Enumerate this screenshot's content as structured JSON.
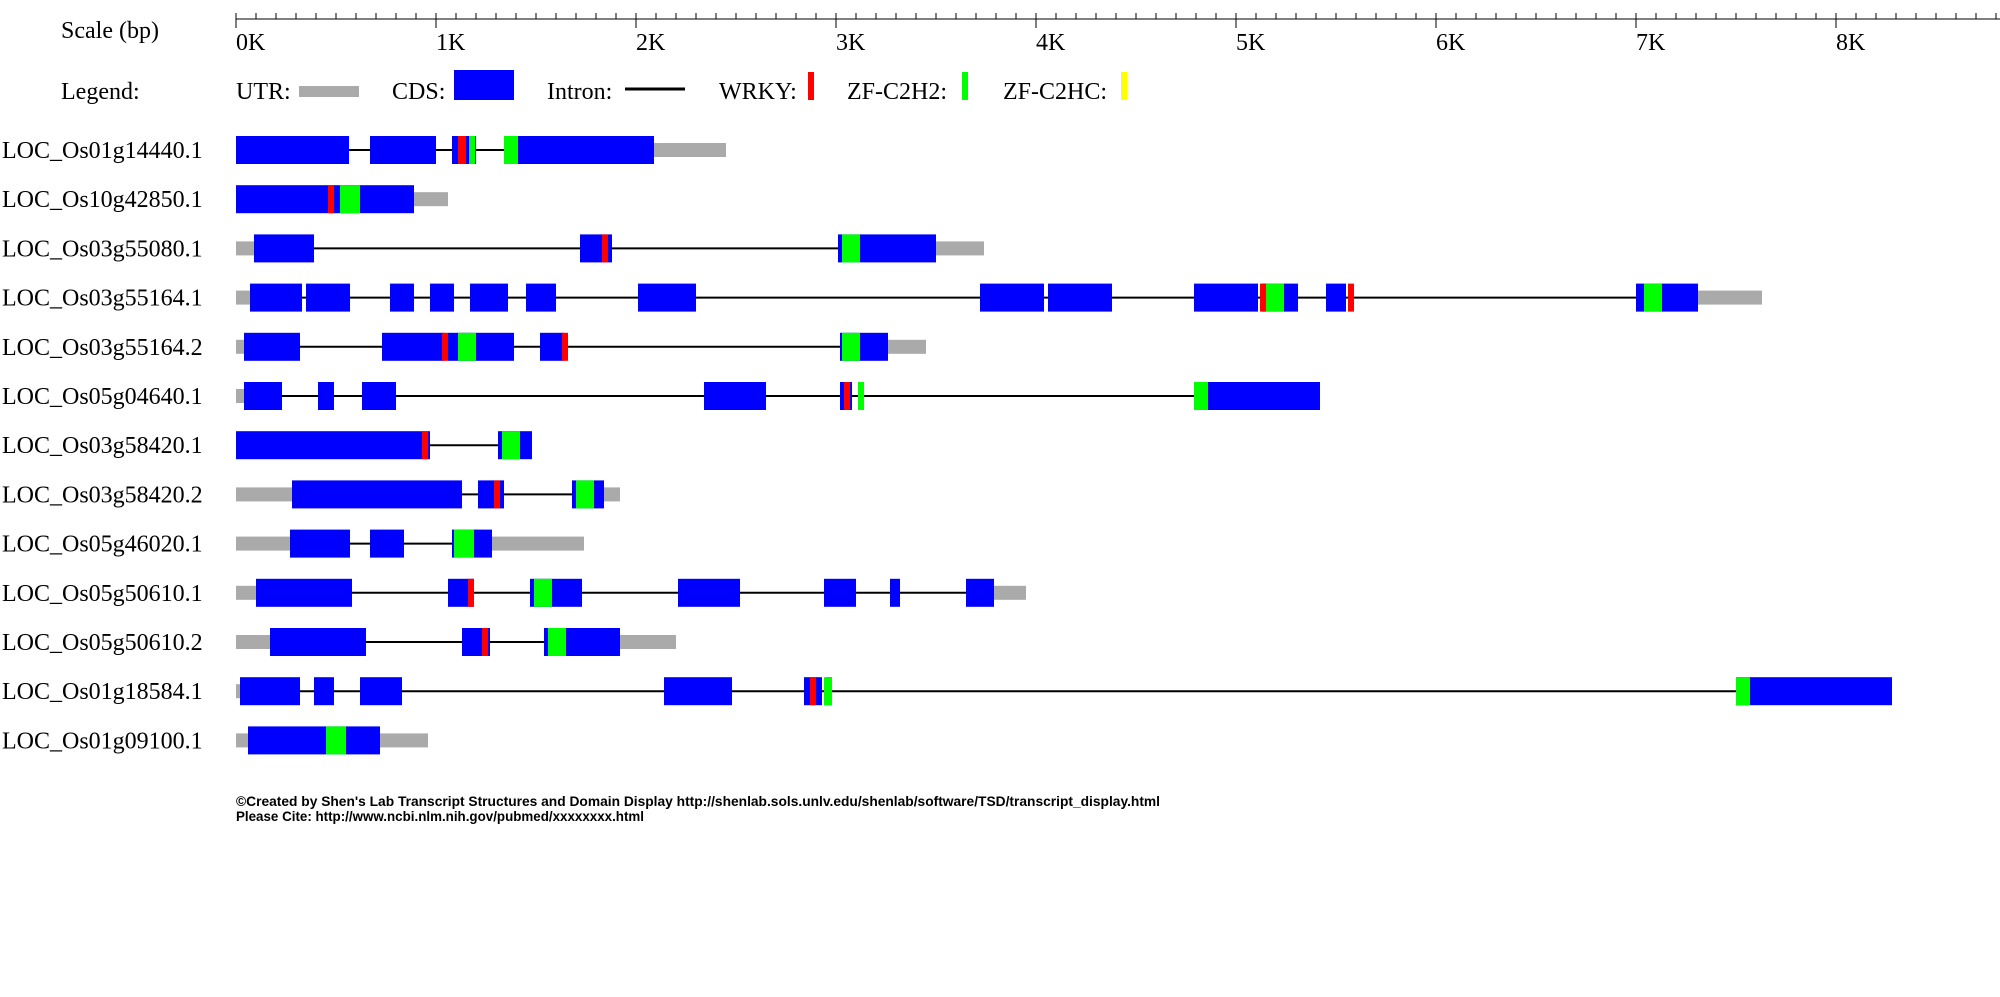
{
  "scale": {
    "label": "Scale (bp)",
    "max_bp": 9000,
    "minor_step_bp": 100,
    "major_step_bp": 1000,
    "tick_labels": [
      "0K",
      "1K",
      "2K",
      "3K",
      "4K",
      "5K",
      "6K",
      "7K",
      "8K"
    ]
  },
  "legend": {
    "label": "Legend:",
    "items": [
      {
        "key": "utr",
        "label": "UTR:",
        "shape": "utr-bar",
        "color": "#aaaaaa"
      },
      {
        "key": "cds",
        "label": "CDS:",
        "shape": "cds-box",
        "color": "#0000ff"
      },
      {
        "key": "intron",
        "label": "Intron:",
        "shape": "line",
        "color": "#000000"
      },
      {
        "key": "wrky",
        "label": "WRKY:",
        "shape": "domain",
        "color": "#ff0000"
      },
      {
        "key": "zf_c2h2",
        "label": "ZF-C2H2:",
        "shape": "domain",
        "color": "#00ff00"
      },
      {
        "key": "zf_c2hc",
        "label": "ZF-C2HC:",
        "shape": "domain",
        "color": "#ffff00"
      }
    ]
  },
  "colors": {
    "utr": "#aaaaaa",
    "cds": "#0000ff",
    "intron": "#000000",
    "WRKY": "#ff0000",
    "ZF-C2H2": "#00ff00",
    "ZF-C2HC": "#ffff00"
  },
  "transcripts": [
    {
      "id": "LOC_Os01g14440.1",
      "start": 0,
      "end": 2450,
      "utr": [
        [
          2090,
          2450
        ]
      ],
      "cds": [
        [
          0,
          565
        ],
        [
          670,
          1000
        ],
        [
          1080,
          1200
        ],
        [
          1340,
          2090
        ]
      ],
      "domains": [
        {
          "type": "WRKY",
          "start": 1110,
          "end": 1150
        },
        {
          "type": "ZF-C2H2",
          "start": 1165,
          "end": 1195
        },
        {
          "type": "ZF-C2H2",
          "start": 1340,
          "end": 1410
        }
      ]
    },
    {
      "id": "LOC_Os10g42850.1",
      "start": 0,
      "end": 1060,
      "utr": [
        [
          890,
          1060
        ]
      ],
      "cds": [
        [
          0,
          890
        ]
      ],
      "domains": [
        {
          "type": "WRKY",
          "start": 460,
          "end": 490
        },
        {
          "type": "ZF-C2H2",
          "start": 520,
          "end": 620
        }
      ]
    },
    {
      "id": "LOC_Os03g55080.1",
      "start": 0,
      "end": 3740,
      "utr": [
        [
          0,
          90
        ],
        [
          3500,
          3740
        ]
      ],
      "cds": [
        [
          90,
          390
        ],
        [
          1720,
          1880
        ],
        [
          3010,
          3500
        ]
      ],
      "domains": [
        {
          "type": "WRKY",
          "start": 1830,
          "end": 1860
        },
        {
          "type": "ZF-C2H2",
          "start": 3030,
          "end": 3120
        }
      ]
    },
    {
      "id": "LOC_Os03g55164.1",
      "start": 0,
      "end": 7630,
      "utr": [
        [
          0,
          70
        ],
        [
          7310,
          7630
        ]
      ],
      "cds": [
        [
          70,
          330
        ],
        [
          350,
          570
        ],
        [
          770,
          890
        ],
        [
          970,
          1090
        ],
        [
          1170,
          1360
        ],
        [
          1450,
          1600
        ],
        [
          2010,
          2300
        ],
        [
          3720,
          4040
        ],
        [
          4060,
          4380
        ],
        [
          4790,
          5110
        ],
        [
          5130,
          5310
        ],
        [
          5450,
          5550
        ],
        [
          7000,
          7310
        ]
      ],
      "domains": [
        {
          "type": "WRKY",
          "start": 5120,
          "end": 5150
        },
        {
          "type": "ZF-C2H2",
          "start": 5150,
          "end": 5240
        },
        {
          "type": "WRKY",
          "start": 5560,
          "end": 5590
        },
        {
          "type": "ZF-C2H2",
          "start": 7040,
          "end": 7130
        }
      ]
    },
    {
      "id": "LOC_Os03g55164.2",
      "start": 0,
      "end": 3450,
      "utr": [
        [
          0,
          40
        ],
        [
          3260,
          3450
        ]
      ],
      "cds": [
        [
          40,
          320
        ],
        [
          730,
          1040
        ],
        [
          1060,
          1390
        ],
        [
          1520,
          1640
        ],
        [
          3020,
          3260
        ]
      ],
      "domains": [
        {
          "type": "WRKY",
          "start": 1030,
          "end": 1060
        },
        {
          "type": "ZF-C2H2",
          "start": 1110,
          "end": 1200
        },
        {
          "type": "WRKY",
          "start": 1630,
          "end": 1660
        },
        {
          "type": "ZF-C2H2",
          "start": 3030,
          "end": 3120
        }
      ]
    },
    {
      "id": "LOC_Os05g04640.1",
      "start": 0,
      "end": 5420,
      "utr": [
        [
          0,
          40
        ]
      ],
      "cds": [
        [
          40,
          230
        ],
        [
          410,
          490
        ],
        [
          630,
          800
        ],
        [
          2340,
          2650
        ],
        [
          3020,
          3080
        ],
        [
          3110,
          3140
        ],
        [
          4790,
          5420
        ]
      ],
      "domains": [
        {
          "type": "WRKY",
          "start": 3040,
          "end": 3070
        },
        {
          "type": "ZF-C2H2",
          "start": 3110,
          "end": 3140
        },
        {
          "type": "ZF-C2H2",
          "start": 4790,
          "end": 4860
        }
      ]
    },
    {
      "id": "LOC_Os03g58420.1",
      "start": 0,
      "end": 1480,
      "utr": [],
      "cds": [
        [
          0,
          970
        ],
        [
          1310,
          1480
        ]
      ],
      "domains": [
        {
          "type": "WRKY",
          "start": 930,
          "end": 960
        },
        {
          "type": "ZF-C2H2",
          "start": 1330,
          "end": 1420
        }
      ]
    },
    {
      "id": "LOC_Os03g58420.2",
      "start": 0,
      "end": 1920,
      "utr": [
        [
          0,
          280
        ],
        [
          1840,
          1920
        ]
      ],
      "cds": [
        [
          280,
          1130
        ],
        [
          1210,
          1340
        ],
        [
          1680,
          1840
        ]
      ],
      "domains": [
        {
          "type": "WRKY",
          "start": 1290,
          "end": 1320
        },
        {
          "type": "ZF-C2H2",
          "start": 1700,
          "end": 1790
        }
      ]
    },
    {
      "id": "LOC_Os05g46020.1",
      "start": 0,
      "end": 1740,
      "utr": [
        [
          0,
          270
        ],
        [
          1280,
          1740
        ]
      ],
      "cds": [
        [
          270,
          570
        ],
        [
          670,
          840
        ],
        [
          1080,
          1280
        ]
      ],
      "domains": [
        {
          "type": "ZF-C2H2",
          "start": 1090,
          "end": 1190
        }
      ]
    },
    {
      "id": "LOC_Os05g50610.1",
      "start": 0,
      "end": 3950,
      "utr": [
        [
          0,
          100
        ],
        [
          3790,
          3950
        ]
      ],
      "cds": [
        [
          100,
          580
        ],
        [
          1060,
          1190
        ],
        [
          1470,
          1730
        ],
        [
          2210,
          2520
        ],
        [
          2940,
          3100
        ],
        [
          3270,
          3320
        ],
        [
          3650,
          3790
        ]
      ],
      "domains": [
        {
          "type": "WRKY",
          "start": 1160,
          "end": 1190
        },
        {
          "type": "ZF-C2H2",
          "start": 1490,
          "end": 1580
        }
      ]
    },
    {
      "id": "LOC_Os05g50610.2",
      "start": 0,
      "end": 2200,
      "utr": [
        [
          0,
          170
        ],
        [
          1920,
          2200
        ]
      ],
      "cds": [
        [
          170,
          650
        ],
        [
          1130,
          1270
        ],
        [
          1540,
          1920
        ]
      ],
      "domains": [
        {
          "type": "WRKY",
          "start": 1230,
          "end": 1260
        },
        {
          "type": "ZF-C2H2",
          "start": 1560,
          "end": 1650
        }
      ]
    },
    {
      "id": "LOC_Os01g18584.1",
      "start": 0,
      "end": 8280,
      "utr": [
        [
          0,
          20
        ]
      ],
      "cds": [
        [
          20,
          320
        ],
        [
          390,
          490
        ],
        [
          620,
          830
        ],
        [
          2140,
          2480
        ],
        [
          2840,
          2930
        ],
        [
          2950,
          2980
        ],
        [
          7500,
          8280
        ]
      ],
      "domains": [
        {
          "type": "WRKY",
          "start": 2870,
          "end": 2900
        },
        {
          "type": "ZF-C2H2",
          "start": 2940,
          "end": 2980
        },
        {
          "type": "ZF-C2H2",
          "start": 7500,
          "end": 7570
        }
      ]
    },
    {
      "id": "LOC_Os01g09100.1",
      "start": 0,
      "end": 960,
      "utr": [
        [
          0,
          60
        ],
        [
          720,
          960
        ]
      ],
      "cds": [
        [
          60,
          720
        ]
      ],
      "domains": [
        {
          "type": "ZF-C2H2",
          "start": 450,
          "end": 550
        }
      ]
    }
  ],
  "footer": {
    "line1": "©Created by Shen's Lab Transcript Structures and Domain Display http://shenlab.sols.unlv.edu/shenlab/software/TSD/transcript_display.html",
    "line2": "Please Cite: http://www.ncbi.nlm.nih.gov/pubmed/xxxxxxxx.html"
  }
}
